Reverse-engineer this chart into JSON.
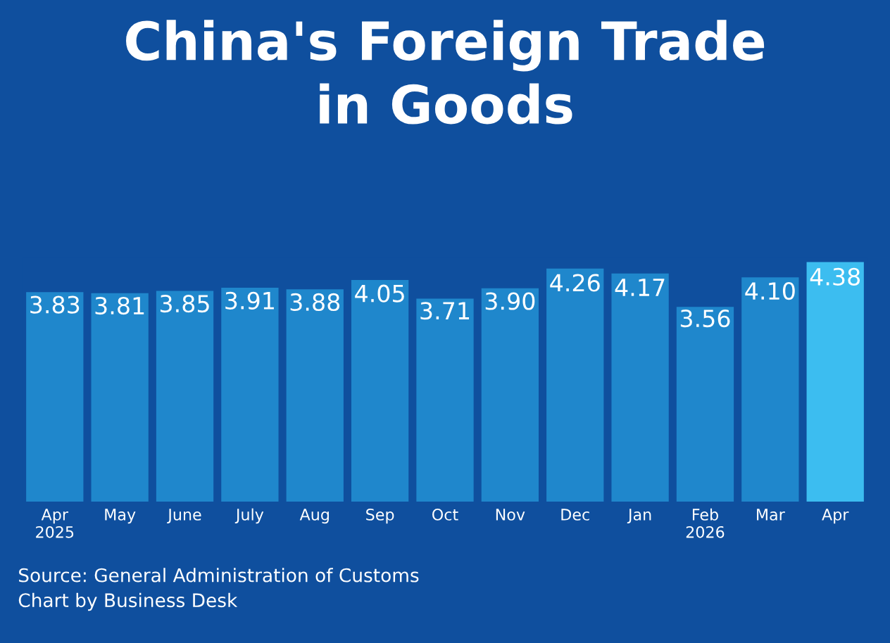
{
  "chart_data": {
    "type": "bar",
    "title": "China's Foreign Trade\nin Goods",
    "categories": [
      "Apr\n2025",
      "May",
      "June",
      "July",
      "Aug",
      "Sep",
      "Oct",
      "Nov",
      "Dec",
      "Jan",
      "Feb\n2026",
      "Mar",
      "Apr"
    ],
    "values": [
      3.83,
      3.81,
      3.85,
      3.91,
      3.88,
      4.05,
      3.71,
      3.9,
      4.26,
      4.17,
      3.56,
      4.1,
      4.38
    ],
    "colors": [
      "#1f87cc",
      "#1f87cc",
      "#1f87cc",
      "#1f87cc",
      "#1f87cc",
      "#1f87cc",
      "#1f87cc",
      "#1f87cc",
      "#1f87cc",
      "#1f87cc",
      "#1f87cc",
      "#1f87cc",
      "#3cbdf0"
    ],
    "value_labels": [
      "3.83",
      "3.81",
      "3.85",
      "3.91",
      "3.88",
      "4.05",
      "3.71",
      "3.90",
      "4.26",
      "4.17",
      "3.56",
      "4.10",
      "4.38"
    ],
    "relative": false,
    "grid": false,
    "legend": false,
    "annotations": [
      "Source: General Administration of Customs\nChart by Business Desk"
    ]
  }
}
